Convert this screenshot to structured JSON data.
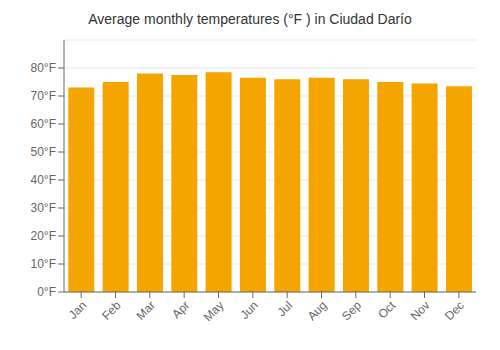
{
  "chart_data": {
    "type": "bar",
    "title": "Average monthly temperatures (°F ) in Ciudad Darío",
    "categories": [
      "Jan",
      "Feb",
      "Mar",
      "Apr",
      "May",
      "Jun",
      "Jul",
      "Aug",
      "Sep",
      "Oct",
      "Nov",
      "Dec"
    ],
    "values": [
      73.0,
      75.0,
      78.0,
      77.5,
      78.5,
      76.5,
      76.0,
      76.5,
      76.0,
      75.0,
      74.5,
      73.5
    ],
    "color": "#F5A500",
    "ylim": [
      0,
      90
    ],
    "yticks": [
      {
        "value": 0,
        "label": "0°F"
      },
      {
        "value": 10,
        "label": "10°F"
      },
      {
        "value": 20,
        "label": "20°F"
      },
      {
        "value": 30,
        "label": "30°F"
      },
      {
        "value": 40,
        "label": "40°F"
      },
      {
        "value": 50,
        "label": "50°F"
      },
      {
        "value": 60,
        "label": "60°F"
      },
      {
        "value": 70,
        "label": "70°F"
      },
      {
        "value": 80,
        "label": "80°F"
      }
    ],
    "grid": true
  }
}
